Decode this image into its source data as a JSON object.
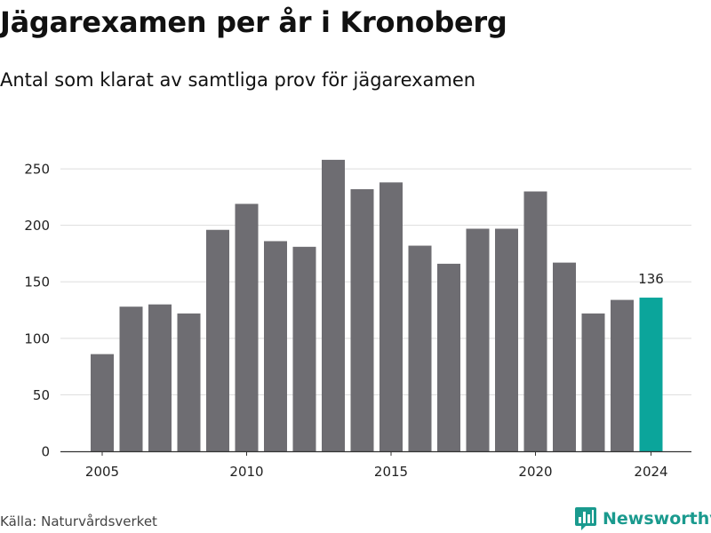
{
  "title": "Jägarexamen per år i Kronoberg",
  "subtitle": "Antal som klarat av samtliga prov för jägarexamen",
  "source": "Källa: Naturvårdsverket",
  "brand": {
    "name": "Newsworthy",
    "icon": "bar-chart-logo-icon",
    "color": "#1a9a8e"
  },
  "colors": {
    "bar": "#6e6d72",
    "highlight": "#0ba59b",
    "grid": "#dddddd",
    "axis": "#333333"
  },
  "chart_data": {
    "type": "bar",
    "x": [
      2005,
      2006,
      2007,
      2008,
      2009,
      2010,
      2011,
      2012,
      2013,
      2014,
      2015,
      2016,
      2017,
      2018,
      2019,
      2020,
      2021,
      2022,
      2023,
      2024
    ],
    "values": [
      86,
      128,
      130,
      122,
      196,
      219,
      186,
      181,
      258,
      232,
      238,
      182,
      166,
      197,
      197,
      230,
      167,
      122,
      134,
      136
    ],
    "xticks": [
      "2005",
      "2010",
      "2015",
      "2020",
      "2024"
    ],
    "yticks": [
      "0",
      "50",
      "100",
      "150",
      "200",
      "250"
    ],
    "ylim": [
      0,
      265
    ],
    "grid": true,
    "highlight": {
      "x": 2024,
      "label": "136"
    },
    "xlabel": "",
    "ylabel": ""
  }
}
